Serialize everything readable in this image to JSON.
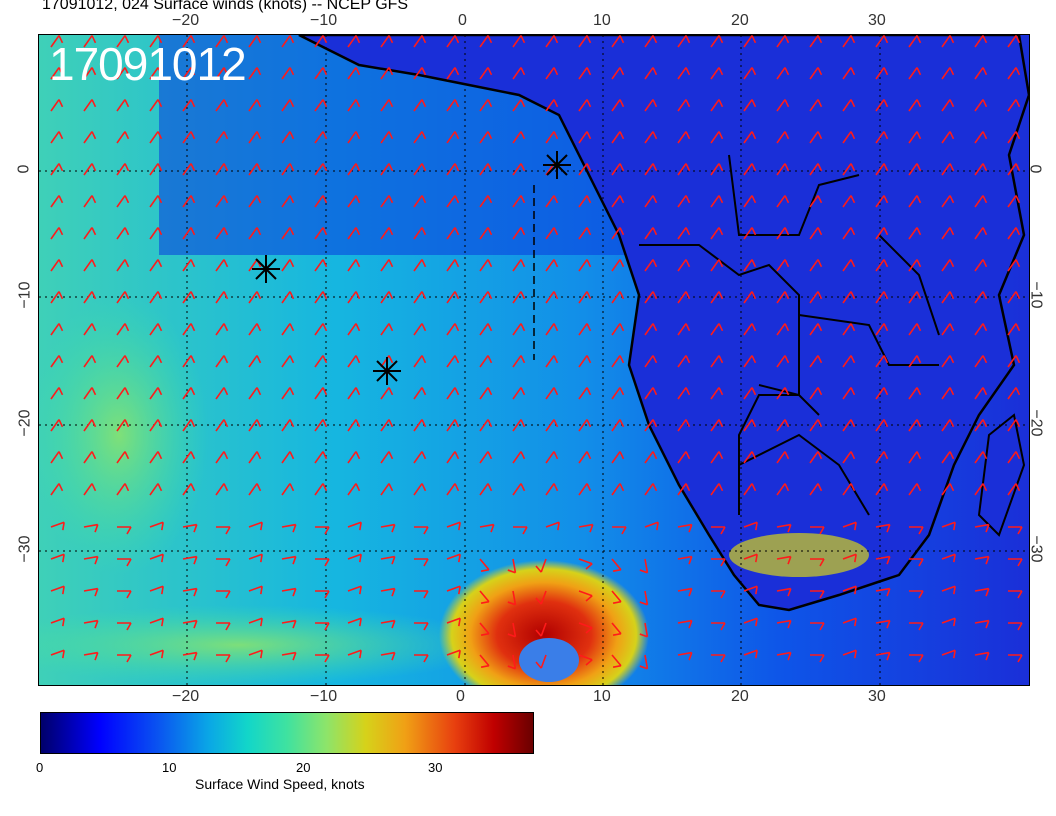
{
  "title": "17091012, 024 Surface winds (knots) -- NCEP GFS",
  "stamp": "17091012",
  "axes": {
    "top_lon_labels": [
      "−20",
      "−10",
      "0",
      "10",
      "20",
      "30"
    ],
    "bottom_lon_labels": [
      "−20",
      "−10",
      "0",
      "10",
      "20",
      "30"
    ],
    "left_lat_labels": [
      "0",
      "−10",
      "−20",
      "−30"
    ],
    "right_lat_labels": [
      "0",
      "−10",
      "−20",
      "−30"
    ]
  },
  "colorbar": {
    "ticks": [
      "0",
      "10",
      "20",
      "30"
    ],
    "label": "Surface Wind Speed, knots"
  },
  "colors": {
    "barb": "#ff1a1a",
    "coast": "#000000",
    "ocean_base": "#1a6cf0",
    "land_base": "#1a2fd8"
  }
}
